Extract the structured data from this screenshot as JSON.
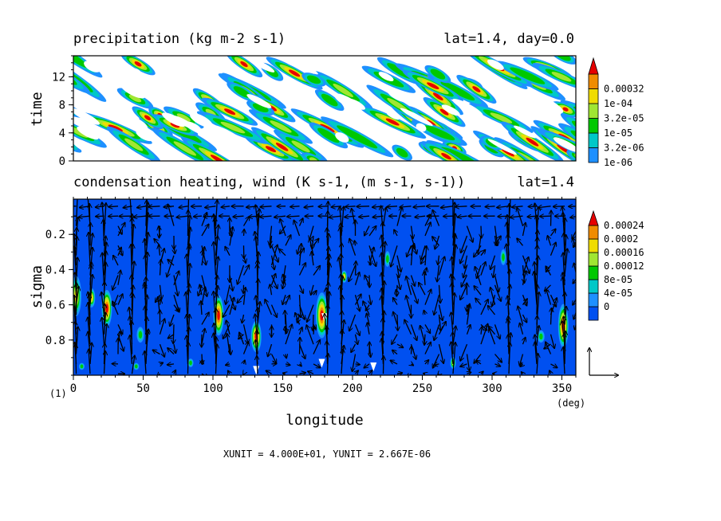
{
  "chart_data": [
    {
      "type": "heatmap",
      "title": "precipitation (kg m-2 s-1)",
      "subtitle": "lat=1.4, day=0.0",
      "xlabel": "",
      "ylabel": "time",
      "xlim": [
        0,
        360
      ],
      "ylim": [
        0,
        15
      ],
      "yticks": [
        "0",
        "4",
        "8",
        "12"
      ],
      "colorbar": {
        "levels": [
          "1e-06",
          "3.2e-06",
          "1e-05",
          "3.2e-05",
          "1e-04",
          "0.00032"
        ],
        "colors": [
          "#1e90ff",
          "#00c8c8",
          "#00c800",
          "#a0e632",
          "#f0dc00",
          "#f08c00",
          "#e60000"
        ]
      }
    },
    {
      "type": "heatmap",
      "title": "condensation heating, wind (K s-1, (m s-1, s-1))",
      "subtitle": "lat=1.4",
      "xlabel": "longitude",
      "ylabel": "sigma",
      "xunit_label": "(deg)",
      "xlim": [
        0,
        360
      ],
      "ylim": [
        1.0,
        0.0
      ],
      "xticks": [
        "0",
        "50",
        "100",
        "150",
        "200",
        "250",
        "300",
        "350"
      ],
      "yticks": [
        "0.2",
        "0.4",
        "0.6",
        "0.8"
      ],
      "colorbar": {
        "levels": [
          "0",
          "4e-05",
          "8e-05",
          "0.00012",
          "0.00016",
          "0.0002",
          "0.00024"
        ],
        "colors": [
          "#0050f0",
          "#1e90ff",
          "#00c8c8",
          "#00c800",
          "#a0e632",
          "#f0dc00",
          "#f08c00",
          "#e60000"
        ]
      }
    }
  ],
  "footer": {
    "panel_index": "(1)",
    "units": "XUNIT = 4.000E+01, YUNIT = 2.667E-06"
  }
}
